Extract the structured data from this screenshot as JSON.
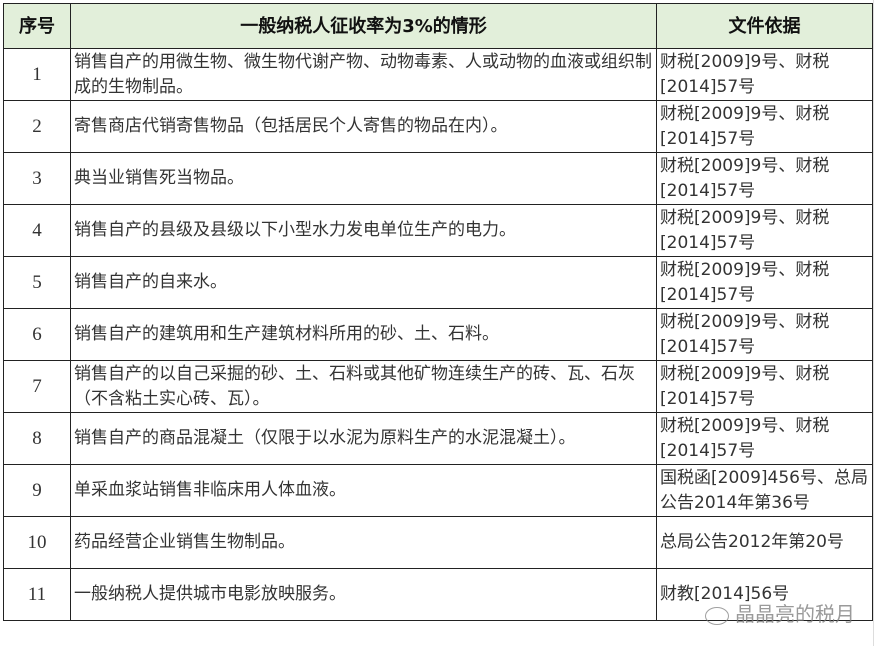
{
  "table": {
    "headers": [
      "序号",
      "一般纳税人征收率为3%的情形",
      "文件依据"
    ],
    "rows": [
      {
        "seq": "1",
        "desc": "销售自产的用微生物、微生物代谢产物、动物毒素、人或动物的血液或组织制成的生物制品。",
        "ref": "财税[2009]9号、财税[2014]57号"
      },
      {
        "seq": "2",
        "desc": "寄售商店代销寄售物品（包括居民个人寄售的物品在内）。",
        "ref": "财税[2009]9号、财税[2014]57号"
      },
      {
        "seq": "3",
        "desc": "典当业销售死当物品。",
        "ref": "财税[2009]9号、财税[2014]57号"
      },
      {
        "seq": "4",
        "desc": "销售自产的县级及县级以下小型水力发电单位生产的电力。",
        "ref": "财税[2009]9号、财税[2014]57号"
      },
      {
        "seq": "5",
        "desc": "销售自产的自来水。",
        "ref": "财税[2009]9号、财税[2014]57号"
      },
      {
        "seq": "6",
        "desc": "销售自产的建筑用和生产建筑材料所用的砂、土、石料。",
        "ref": "财税[2009]9号、财税[2014]57号"
      },
      {
        "seq": "7",
        "desc": "销售自产的以自己采掘的砂、土、石料或其他矿物连续生产的砖、瓦、石灰（不含粘土实心砖、瓦）。",
        "ref": "财税[2009]9号、财税[2014]57号"
      },
      {
        "seq": "8",
        "desc": "销售自产的商品混凝土（仅限于以水泥为原料生产的水泥混凝土）。",
        "ref": "财税[2009]9号、财税[2014]57号"
      },
      {
        "seq": "9",
        "desc": "单采血浆站销售非临床用人体血液。",
        "ref": "国税函[2009]456号、总局公告2014年第36号"
      },
      {
        "seq": "10",
        "desc": "药品经营企业销售生物制品。",
        "ref": "总局公告2012年第20号"
      },
      {
        "seq": "11",
        "desc": "一般纳税人提供城市电影放映服务。",
        "ref": "财教[2014]56号"
      }
    ]
  },
  "watermark": {
    "text": "晶晶亮的税月",
    "icon": "wechat-icon"
  },
  "colors": {
    "header_bg": "#e2efda",
    "seq_bg": "#fff2cc"
  }
}
